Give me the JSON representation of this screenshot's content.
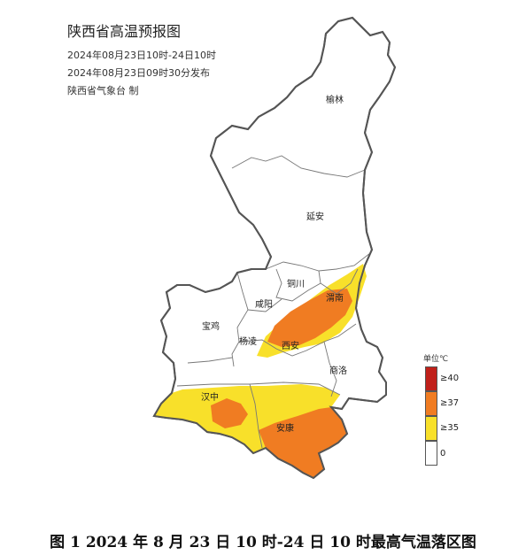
{
  "header": {
    "title": "陕西省高温预报图",
    "valid_period": "2024年08月23日10时-24日10时",
    "issued": "2024年08月23日09时30分发布",
    "producer": "陕西省气象台 制"
  },
  "cities": {
    "yulin": "榆林",
    "yanan": "延安",
    "tongchuan": "铜川",
    "weinan": "渭南",
    "xianyang": "咸阳",
    "baoji": "宝鸡",
    "yangling": "杨凌",
    "xian": "西安",
    "shangluo": "商洛",
    "hanzhong": "汉中",
    "ankang": "安康"
  },
  "legend": {
    "title": "单位℃",
    "items": [
      {
        "label": "≥40",
        "color": "#c0201a"
      },
      {
        "label": "≥37",
        "color": "#f07c22"
      },
      {
        "label": "≥35",
        "color": "#f8e02a"
      },
      {
        "label": "0",
        "color": "#ffffff"
      }
    ]
  },
  "caption": "图 1 2024 年 8 月 23 日 10 时-24 日 10 时最高气温落区图"
}
